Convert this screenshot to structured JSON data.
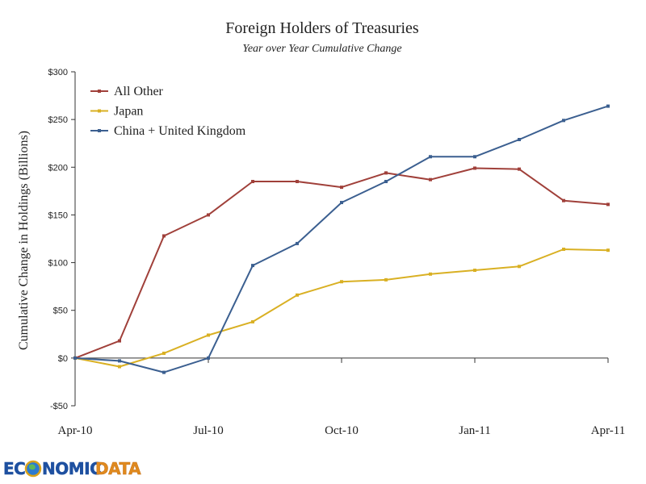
{
  "chart_data": {
    "type": "line",
    "title": "Foreign Holders of Treasuries",
    "subtitle": "Year over Year Cumulative Change",
    "ylabel": "Cumulative Change in Holdings (Billions)",
    "xlabel": "",
    "ylim": [
      -50,
      300
    ],
    "yticks": [
      -50,
      0,
      50,
      100,
      150,
      200,
      250,
      300
    ],
    "ytick_labels": [
      "-$50",
      "$0",
      "$50",
      "$100",
      "$150",
      "$200",
      "$250",
      "$300"
    ],
    "x_tick_labels": [
      "Apr-10",
      "Jul-10",
      "Oct-10",
      "Jan-11",
      "Apr-11"
    ],
    "x_tick_positions": [
      0,
      3,
      6,
      9,
      12
    ],
    "legend_position": "top-left",
    "grid": false,
    "series": [
      {
        "name": "All Other",
        "color": "#a0403a",
        "values": [
          0,
          18,
          128,
          150,
          185,
          185,
          179,
          194,
          187,
          199,
          198,
          165,
          161
        ]
      },
      {
        "name": "Japan",
        "color": "#d9b023",
        "values": [
          0,
          -9,
          5,
          24,
          38,
          66,
          80,
          82,
          88,
          92,
          96,
          114,
          113
        ]
      },
      {
        "name": "China + United Kingdom",
        "color": "#3b5f90",
        "values": [
          0,
          -3,
          -15,
          0,
          97,
          120,
          163,
          185,
          211,
          211,
          229,
          249,
          264
        ]
      }
    ]
  },
  "logo": {
    "text": "ECONOMICDATA"
  }
}
